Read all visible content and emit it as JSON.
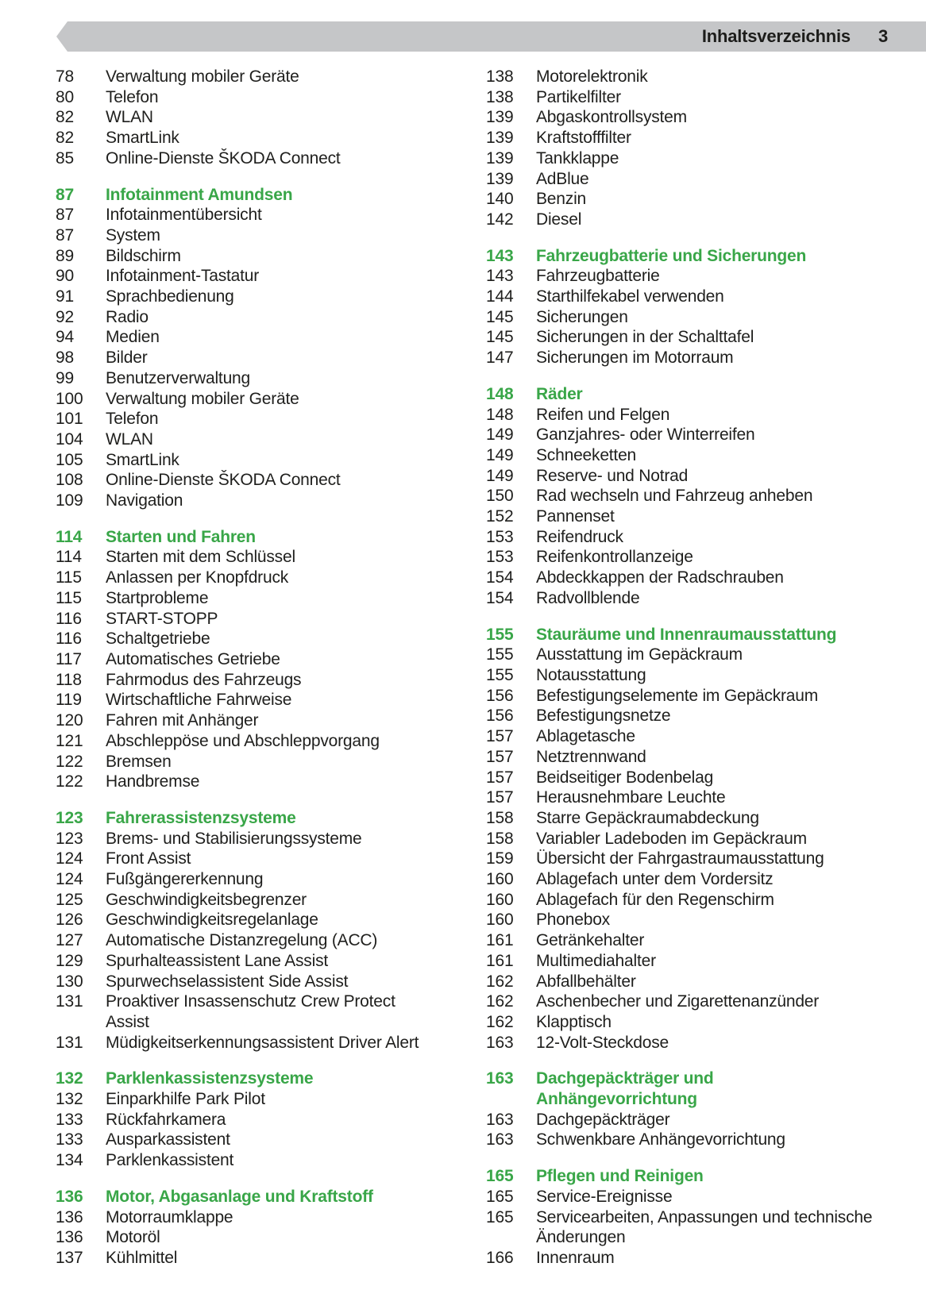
{
  "header": {
    "title": "Inhaltsverzeichnis",
    "page_number": "3"
  },
  "colors": {
    "accent_green": "#39a648",
    "banner_gray": "#c5c6c8",
    "text": "#1f1f1d"
  },
  "toc": {
    "columns": [
      {
        "sections": [
          {
            "page": null,
            "title": null,
            "entries": [
              {
                "page": "78",
                "label": "Verwaltung mobiler Geräte"
              },
              {
                "page": "80",
                "label": "Telefon"
              },
              {
                "page": "82",
                "label": "WLAN"
              },
              {
                "page": "82",
                "label": "SmartLink"
              },
              {
                "page": "85",
                "label": "Online-Dienste ŠKODA Connect"
              }
            ]
          },
          {
            "page": "87",
            "title": "Infotainment Amundsen",
            "entries": [
              {
                "page": "87",
                "label": "Infotainmentübersicht"
              },
              {
                "page": "87",
                "label": "System"
              },
              {
                "page": "89",
                "label": "Bildschirm"
              },
              {
                "page": "90",
                "label": "Infotainment-Tastatur"
              },
              {
                "page": "91",
                "label": "Sprachbedienung"
              },
              {
                "page": "92",
                "label": "Radio"
              },
              {
                "page": "94",
                "label": "Medien"
              },
              {
                "page": "98",
                "label": "Bilder"
              },
              {
                "page": "99",
                "label": "Benutzerverwaltung"
              },
              {
                "page": "100",
                "label": "Verwaltung mobiler Geräte"
              },
              {
                "page": "101",
                "label": "Telefon"
              },
              {
                "page": "104",
                "label": "WLAN"
              },
              {
                "page": "105",
                "label": "SmartLink"
              },
              {
                "page": "108",
                "label": "Online-Dienste ŠKODA Connect"
              },
              {
                "page": "109",
                "label": "Navigation"
              }
            ]
          },
          {
            "page": "114",
            "title": "Starten und Fahren",
            "entries": [
              {
                "page": "114",
                "label": "Starten mit dem Schlüssel"
              },
              {
                "page": "115",
                "label": "Anlassen per Knopfdruck"
              },
              {
                "page": "115",
                "label": "Startprobleme"
              },
              {
                "page": "116",
                "label": "START-STOPP"
              },
              {
                "page": "116",
                "label": "Schaltgetriebe"
              },
              {
                "page": "117",
                "label": "Automatisches Getriebe"
              },
              {
                "page": "118",
                "label": "Fahrmodus des Fahrzeugs"
              },
              {
                "page": "119",
                "label": "Wirtschaftliche Fahrweise"
              },
              {
                "page": "120",
                "label": "Fahren mit Anhänger"
              },
              {
                "page": "121",
                "label": "Abschleppöse und Abschleppvorgang"
              },
              {
                "page": "122",
                "label": "Bremsen"
              },
              {
                "page": "122",
                "label": "Handbremse"
              }
            ]
          },
          {
            "page": "123",
            "title": "Fahrerassistenzsysteme",
            "entries": [
              {
                "page": "123",
                "label": "Brems- und Stabilisierungssysteme"
              },
              {
                "page": "124",
                "label": "Front Assist"
              },
              {
                "page": "124",
                "label": "Fußgängererkennung"
              },
              {
                "page": "125",
                "label": "Geschwindigkeitsbegrenzer"
              },
              {
                "page": "126",
                "label": "Geschwindigkeitsregelanlage"
              },
              {
                "page": "127",
                "label": "Automatische Distanzregelung (ACC)"
              },
              {
                "page": "129",
                "label": "Spurhalteassistent Lane Assist"
              },
              {
                "page": "130",
                "label": "Spurwechselassistent Side Assist"
              },
              {
                "page": "131",
                "label": "Proaktiver Insassenschutz Crew Protect\nAssist"
              },
              {
                "page": "131",
                "label": "Müdigkeitserkennungsassistent Driver Alert"
              }
            ]
          },
          {
            "page": "132",
            "title": "Parklenkassistenzsysteme",
            "entries": [
              {
                "page": "132",
                "label": "Einparkhilfe Park Pilot"
              },
              {
                "page": "133",
                "label": "Rückfahrkamera"
              },
              {
                "page": "133",
                "label": "Ausparkassistent"
              },
              {
                "page": "134",
                "label": "Parklenkassistent"
              }
            ]
          },
          {
            "page": "136",
            "title": "Motor, Abgasanlage und Kraftstoff",
            "entries": [
              {
                "page": "136",
                "label": "Motorraumklappe"
              },
              {
                "page": "136",
                "label": "Motoröl"
              },
              {
                "page": "137",
                "label": "Kühlmittel"
              }
            ]
          }
        ]
      },
      {
        "sections": [
          {
            "page": null,
            "title": null,
            "entries": [
              {
                "page": "138",
                "label": "Motorelektronik"
              },
              {
                "page": "138",
                "label": "Partikelfilter"
              },
              {
                "page": "139",
                "label": "Abgaskontrollsystem"
              },
              {
                "page": "139",
                "label": "Kraftstofffilter"
              },
              {
                "page": "139",
                "label": "Tankklappe"
              },
              {
                "page": "139",
                "label": "AdBlue"
              },
              {
                "page": "140",
                "label": "Benzin"
              },
              {
                "page": "142",
                "label": "Diesel"
              }
            ]
          },
          {
            "page": "143",
            "title": "Fahrzeugbatterie und Sicherungen",
            "entries": [
              {
                "page": "143",
                "label": "Fahrzeugbatterie"
              },
              {
                "page": "144",
                "label": "Starthilfekabel verwenden"
              },
              {
                "page": "145",
                "label": "Sicherungen"
              },
              {
                "page": "145",
                "label": "Sicherungen in der Schalttafel"
              },
              {
                "page": "147",
                "label": "Sicherungen im Motorraum"
              }
            ]
          },
          {
            "page": "148",
            "title": "Räder",
            "entries": [
              {
                "page": "148",
                "label": "Reifen und Felgen"
              },
              {
                "page": "149",
                "label": "Ganzjahres- oder Winterreifen"
              },
              {
                "page": "149",
                "label": "Schneeketten"
              },
              {
                "page": "149",
                "label": "Reserve- und Notrad"
              },
              {
                "page": "150",
                "label": "Rad wechseln und Fahrzeug anheben"
              },
              {
                "page": "152",
                "label": "Pannenset"
              },
              {
                "page": "153",
                "label": "Reifendruck"
              },
              {
                "page": "153",
                "label": "Reifenkontrollanzeige"
              },
              {
                "page": "154",
                "label": "Abdeckkappen der Radschrauben"
              },
              {
                "page": "154",
                "label": "Radvollblende"
              }
            ]
          },
          {
            "page": "155",
            "title": "Stauräume und Innenraumausstattung",
            "entries": [
              {
                "page": "155",
                "label": "Ausstattung im Gepäckraum"
              },
              {
                "page": "155",
                "label": "Notausstattung"
              },
              {
                "page": "156",
                "label": "Befestigungselemente im Gepäckraum"
              },
              {
                "page": "156",
                "label": "Befestigungsnetze"
              },
              {
                "page": "157",
                "label": "Ablagetasche"
              },
              {
                "page": "157",
                "label": "Netztrennwand"
              },
              {
                "page": "157",
                "label": "Beidseitiger Bodenbelag"
              },
              {
                "page": "157",
                "label": "Herausnehmbare Leuchte"
              },
              {
                "page": "158",
                "label": "Starre Gepäckraumabdeckung"
              },
              {
                "page": "158",
                "label": "Variabler Ladeboden im Gepäckraum"
              },
              {
                "page": "159",
                "label": "Übersicht der Fahrgastraumausstattung"
              },
              {
                "page": "160",
                "label": "Ablagefach unter dem Vordersitz"
              },
              {
                "page": "160",
                "label": "Ablagefach für den Regenschirm"
              },
              {
                "page": "160",
                "label": "Phonebox"
              },
              {
                "page": "161",
                "label": "Getränkehalter"
              },
              {
                "page": "161",
                "label": "Multimediahalter"
              },
              {
                "page": "162",
                "label": "Abfallbehälter"
              },
              {
                "page": "162",
                "label": "Aschenbecher und Zigarettenanzünder"
              },
              {
                "page": "162",
                "label": "Klapptisch"
              },
              {
                "page": "163",
                "label": "12-Volt-Steckdose"
              }
            ]
          },
          {
            "page": "163",
            "title": "Dachgepäckträger und\nAnhängevorrichtung",
            "entries": [
              {
                "page": "163",
                "label": "Dachgepäckträger"
              },
              {
                "page": "163",
                "label": "Schwenkbare Anhängevorrichtung"
              }
            ]
          },
          {
            "page": "165",
            "title": "Pflegen und Reinigen",
            "entries": [
              {
                "page": "165",
                "label": "Service-Ereignisse"
              },
              {
                "page": "165",
                "label": "Servicearbeiten, Anpassungen und technische\nÄnderungen"
              },
              {
                "page": "166",
                "label": "Innenraum"
              }
            ]
          }
        ]
      }
    ]
  }
}
